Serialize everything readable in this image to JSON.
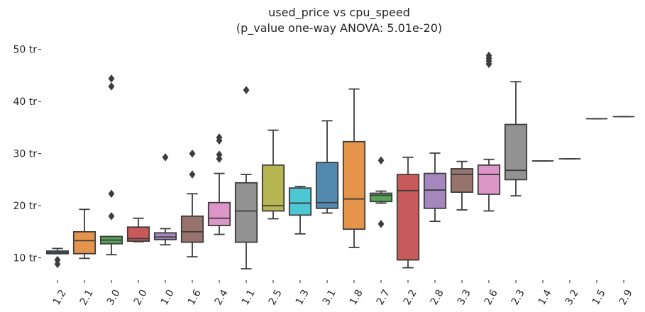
{
  "chart_data": {
    "type": "box",
    "title": "used_price vs cpu_speed",
    "subtitle": "(p_value one-way ANOVA: 5.01e-20)",
    "xlabel": "",
    "ylabel": "",
    "y_unit_suffix": " tr",
    "ylim": [
      6,
      52
    ],
    "y_ticks": [
      10,
      20,
      30,
      40,
      50
    ],
    "grid": false,
    "categories": [
      "1.2",
      "2.1",
      "3.0",
      "2.0",
      "1.0",
      "1.6",
      "2.4",
      "1.1",
      "2.5",
      "1.3",
      "3.1",
      "1.8",
      "2.7",
      "2.2",
      "2.8",
      "3.3",
      "2.6",
      "2.3",
      "1.4",
      "3.2",
      "1.5",
      "2.9"
    ],
    "boxes": [
      {
        "x": "1.2",
        "whislo": 10.8,
        "q1": 10.8,
        "med": 11.0,
        "q3": 11.3,
        "whishi": 11.8,
        "fliers": [
          9.6,
          8.8
        ],
        "color": "#3274a1"
      },
      {
        "x": "2.1",
        "whislo": 9.9,
        "q1": 10.8,
        "med": 13.3,
        "q3": 15.0,
        "whishi": 19.3,
        "fliers": [],
        "color": "#e1812c"
      },
      {
        "x": "3.0",
        "whislo": 10.6,
        "q1": 12.7,
        "med": 13.4,
        "q3": 14.1,
        "whishi": 14.1,
        "fliers": [
          18.0,
          22.3,
          42.9,
          44.4
        ],
        "color": "#3a923a"
      },
      {
        "x": "2.0",
        "whislo": 13.1,
        "q1": 13.2,
        "med": 13.7,
        "q3": 15.9,
        "whishi": 17.6,
        "fliers": [],
        "color": "#c03d3e"
      },
      {
        "x": "1.0",
        "whislo": 12.5,
        "q1": 13.5,
        "med": 14.0,
        "q3": 14.8,
        "whishi": 15.6,
        "fliers": [
          29.3
        ],
        "color": "#9372b2"
      },
      {
        "x": "1.6",
        "whislo": 10.2,
        "q1": 13.0,
        "med": 15.0,
        "q3": 18.0,
        "whishi": 22.3,
        "fliers": [
          26.0,
          30.0
        ],
        "color": "#845b53"
      },
      {
        "x": "2.4",
        "whislo": 14.5,
        "q1": 16.2,
        "med": 17.6,
        "q3": 20.6,
        "whishi": 26.2,
        "fliers": [
          29.0,
          29.8,
          32.5,
          33.1
        ],
        "color": "#d684bd"
      },
      {
        "x": "1.1",
        "whislo": 7.9,
        "q1": 13.0,
        "med": 19.0,
        "q3": 24.4,
        "whishi": 26.0,
        "fliers": [
          42.2
        ],
        "color": "#7f7f7f"
      },
      {
        "x": "2.5",
        "whislo": 17.5,
        "q1": 19.0,
        "med": 20.0,
        "q3": 27.8,
        "whishi": 34.5,
        "fliers": [],
        "color": "#a9aa35"
      },
      {
        "x": "1.3",
        "whislo": 14.6,
        "q1": 18.2,
        "med": 20.5,
        "q3": 23.4,
        "whishi": 23.7,
        "fliers": [],
        "color": "#2ebdcd"
      },
      {
        "x": "3.1",
        "whislo": 18.6,
        "q1": 19.5,
        "med": 20.6,
        "q3": 28.3,
        "whishi": 36.3,
        "fliers": [],
        "color": "#3274a1"
      },
      {
        "x": "1.8",
        "whislo": 12.0,
        "q1": 15.5,
        "med": 21.3,
        "q3": 32.3,
        "whishi": 42.4,
        "fliers": [],
        "color": "#e1812c"
      },
      {
        "x": "2.7",
        "whislo": 20.5,
        "q1": 20.8,
        "med": 22.0,
        "q3": 22.4,
        "whishi": 22.8,
        "fliers": [
          28.7,
          16.5
        ],
        "color": "#3a923a"
      },
      {
        "x": "2.2",
        "whislo": 8.1,
        "q1": 9.6,
        "med": 22.9,
        "q3": 26.0,
        "whishi": 29.3,
        "fliers": [],
        "color": "#c03d3e"
      },
      {
        "x": "2.8",
        "whislo": 17.0,
        "q1": 19.5,
        "med": 23.0,
        "q3": 26.2,
        "whishi": 30.1,
        "fliers": [],
        "color": "#9372b2"
      },
      {
        "x": "3.3",
        "whislo": 19.2,
        "q1": 22.6,
        "med": 26.0,
        "q3": 27.1,
        "whishi": 28.5,
        "fliers": [],
        "color": "#845b53"
      },
      {
        "x": "2.6",
        "whislo": 19.0,
        "q1": 22.2,
        "med": 26.0,
        "q3": 27.8,
        "whishi": 28.9,
        "fliers": [
          47.2,
          47.8,
          48.3,
          48.8
        ],
        "color": "#d684bd"
      },
      {
        "x": "2.3",
        "whislo": 21.9,
        "q1": 25.0,
        "med": 26.8,
        "q3": 35.6,
        "whishi": 43.8,
        "fliers": [],
        "color": "#7f7f7f"
      },
      {
        "x": "1.4",
        "whislo": 28.6,
        "q1": 28.6,
        "med": 28.6,
        "q3": 28.6,
        "whishi": 28.6,
        "fliers": [],
        "color": "#a9aa35"
      },
      {
        "x": "3.2",
        "whislo": 29.0,
        "q1": 29.0,
        "med": 29.0,
        "q3": 29.0,
        "whishi": 29.0,
        "fliers": [],
        "color": "#2ebdcd"
      },
      {
        "x": "1.5",
        "whislo": 36.7,
        "q1": 36.7,
        "med": 36.7,
        "q3": 36.7,
        "whishi": 36.7,
        "fliers": [],
        "color": "#3274a1"
      },
      {
        "x": "2.9",
        "whislo": 37.1,
        "q1": 37.1,
        "med": 37.1,
        "q3": 37.1,
        "whishi": 37.1,
        "fliers": [],
        "color": "#e1812c"
      }
    ],
    "line_color": "#3d3d3d",
    "text_color": "#262626"
  }
}
